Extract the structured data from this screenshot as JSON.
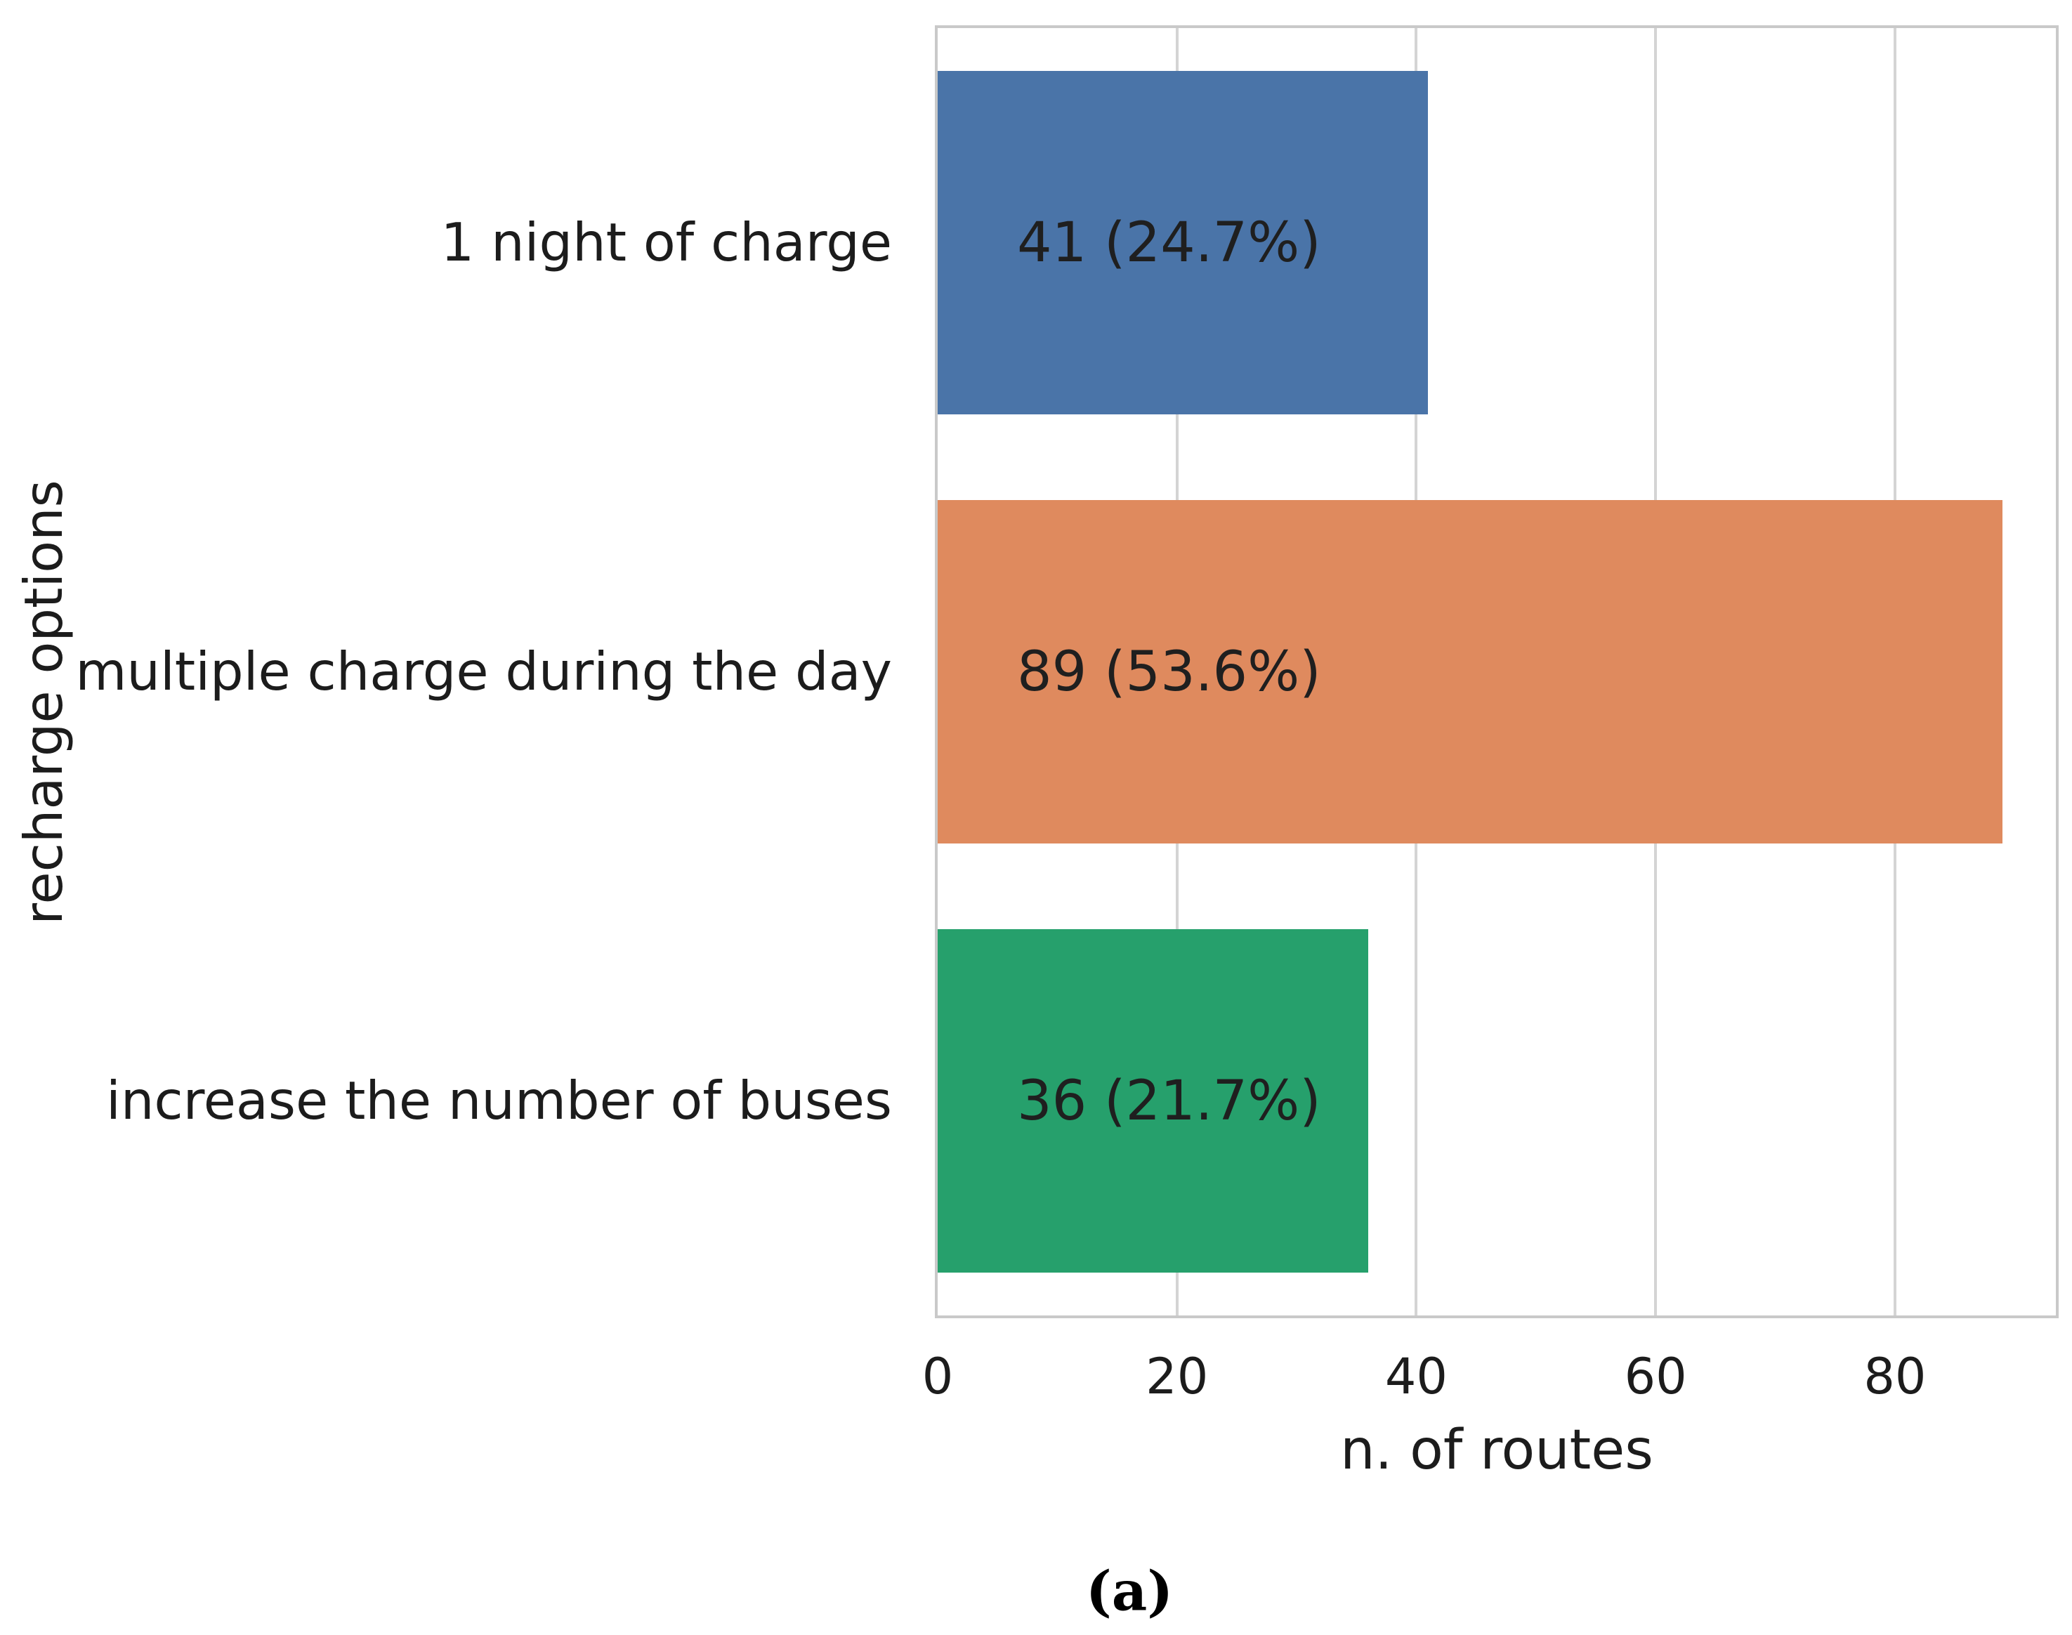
{
  "chart_data": {
    "type": "bar",
    "orientation": "horizontal",
    "categories": [
      "1 night of charge",
      "multiple charge during the day",
      "increase the number of buses"
    ],
    "values": [
      41,
      89,
      36
    ],
    "percentages": [
      24.7,
      53.6,
      21.7
    ],
    "bar_labels": [
      "41 (24.7%)",
      "89 (53.6%)",
      "36 (21.7%)"
    ],
    "colors": [
      "#4a74a8",
      "#df8a5e",
      "#26a06c"
    ],
    "xlabel": "n. of routes",
    "ylabel": "recharge options",
    "xticks": [
      0,
      20,
      40,
      60,
      80
    ],
    "xlim": [
      0,
      93.45
    ],
    "grid": true,
    "grid_color": "#d4d4d4",
    "spine_color": "#c9c9c9",
    "caption": "(a)",
    "title": ""
  }
}
